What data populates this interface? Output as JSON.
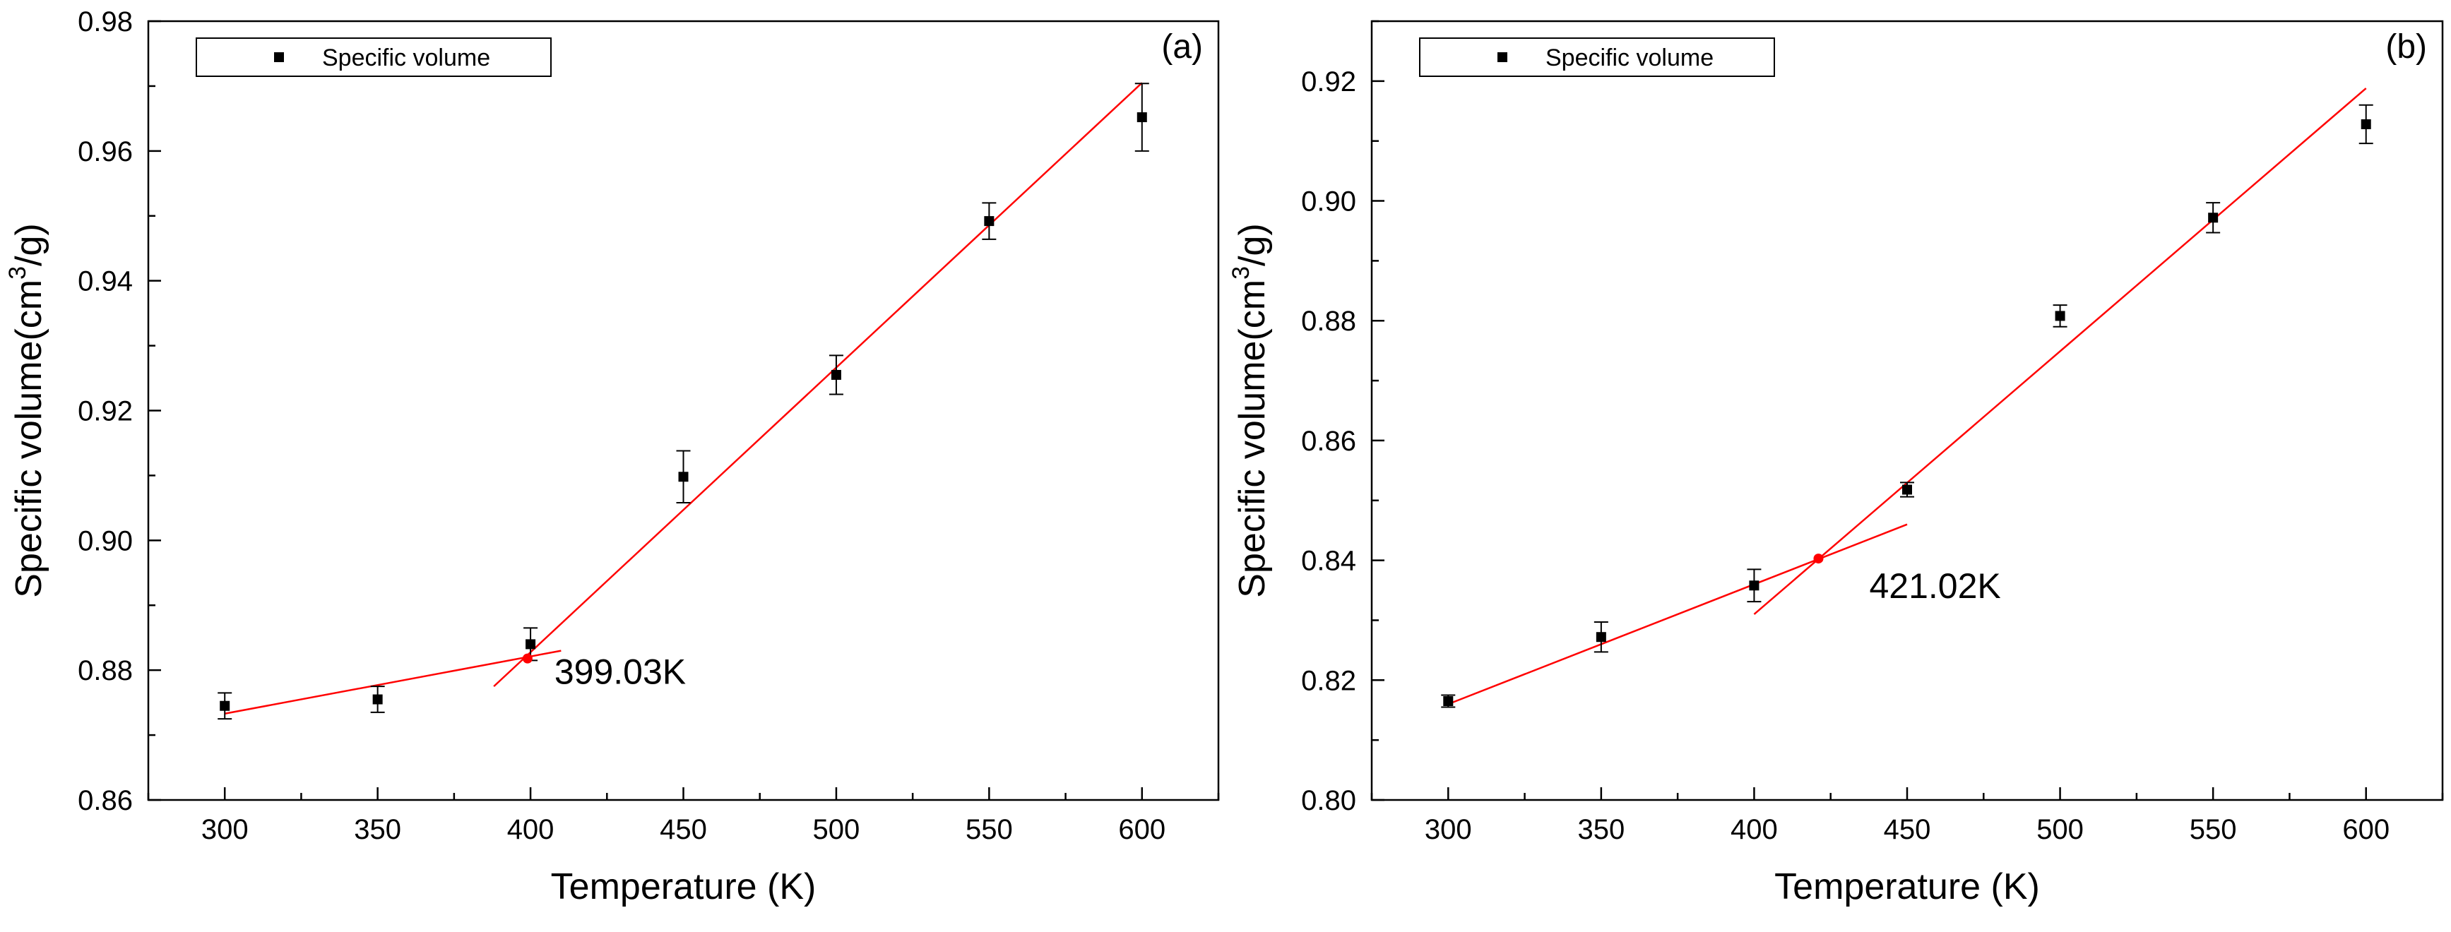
{
  "chart_data": [
    {
      "type": "scatter",
      "panel_label": "(a)",
      "xlabel": "Temperature (K)",
      "ylabel_main": "Specific volume(cm",
      "ylabel_sup": "3",
      "ylabel_end": "/g)",
      "xlim": [
        275,
        625
      ],
      "ylim": [
        0.86,
        0.98
      ],
      "xticks": [
        300,
        350,
        400,
        450,
        500,
        550,
        600
      ],
      "yticks": [
        0.86,
        0.88,
        0.9,
        0.92,
        0.94,
        0.96,
        0.98
      ],
      "xtick_labels": [
        "300",
        "350",
        "400",
        "450",
        "500",
        "550",
        "600"
      ],
      "ytick_labels": [
        "0.86",
        "0.88",
        "0.90",
        "0.92",
        "0.94",
        "0.96",
        "0.98"
      ],
      "legend": {
        "label": "Specific volume",
        "position": "top-left"
      },
      "series": [
        {
          "name": "Specific volume",
          "x": [
            300,
            350,
            400,
            450,
            500,
            550,
            600
          ],
          "y": [
            0.8745,
            0.8755,
            0.884,
            0.9098,
            0.9255,
            0.9492,
            0.9652
          ],
          "err": [
            0.002,
            0.002,
            0.0025,
            0.004,
            0.003,
            0.0028,
            0.0052
          ]
        }
      ],
      "fit_lines": [
        {
          "x1": 300,
          "y1": 0.8733,
          "x2": 410,
          "y2": 0.883
        },
        {
          "x1": 388,
          "y1": 0.8775,
          "x2": 600,
          "y2": 0.9705
        }
      ],
      "intersection": {
        "x": 399.03,
        "y": 0.8818,
        "label": "399.03K"
      },
      "colors": {
        "points": "#000000",
        "fit": "#ff0000",
        "axis": "#000000"
      }
    },
    {
      "type": "scatter",
      "panel_label": "(b)",
      "xlabel": "Temperature (K)",
      "ylabel_main": "Specific volume(cm",
      "ylabel_sup": "3",
      "ylabel_end": "/g)",
      "xlim": [
        275,
        625
      ],
      "ylim": [
        0.8,
        0.93
      ],
      "xticks": [
        300,
        350,
        400,
        450,
        500,
        550,
        600
      ],
      "yticks": [
        0.8,
        0.82,
        0.84,
        0.86,
        0.88,
        0.9,
        0.92
      ],
      "xtick_labels": [
        "300",
        "350",
        "400",
        "450",
        "500",
        "550",
        "600"
      ],
      "ytick_labels": [
        "0.80",
        "0.82",
        "0.84",
        "0.86",
        "0.88",
        "0.90",
        "0.92"
      ],
      "legend": {
        "label": "Specific volume",
        "position": "top-left"
      },
      "series": [
        {
          "name": "Specific volume",
          "x": [
            300,
            350,
            400,
            450,
            500,
            550,
            600
          ],
          "y": [
            0.8165,
            0.8272,
            0.8358,
            0.8518,
            0.8808,
            0.8972,
            0.9128
          ],
          "err": [
            0.001,
            0.0025,
            0.0027,
            0.0012,
            0.0018,
            0.0025,
            0.0032
          ]
        }
      ],
      "fit_lines": [
        {
          "x1": 300,
          "y1": 0.816,
          "x2": 450,
          "y2": 0.846
        },
        {
          "x1": 400,
          "y1": 0.831,
          "x2": 600,
          "y2": 0.9188
        }
      ],
      "intersection": {
        "x": 421.02,
        "y": 0.8403,
        "label": "421.02K"
      },
      "colors": {
        "points": "#000000",
        "fit": "#ff0000",
        "axis": "#000000"
      }
    }
  ]
}
